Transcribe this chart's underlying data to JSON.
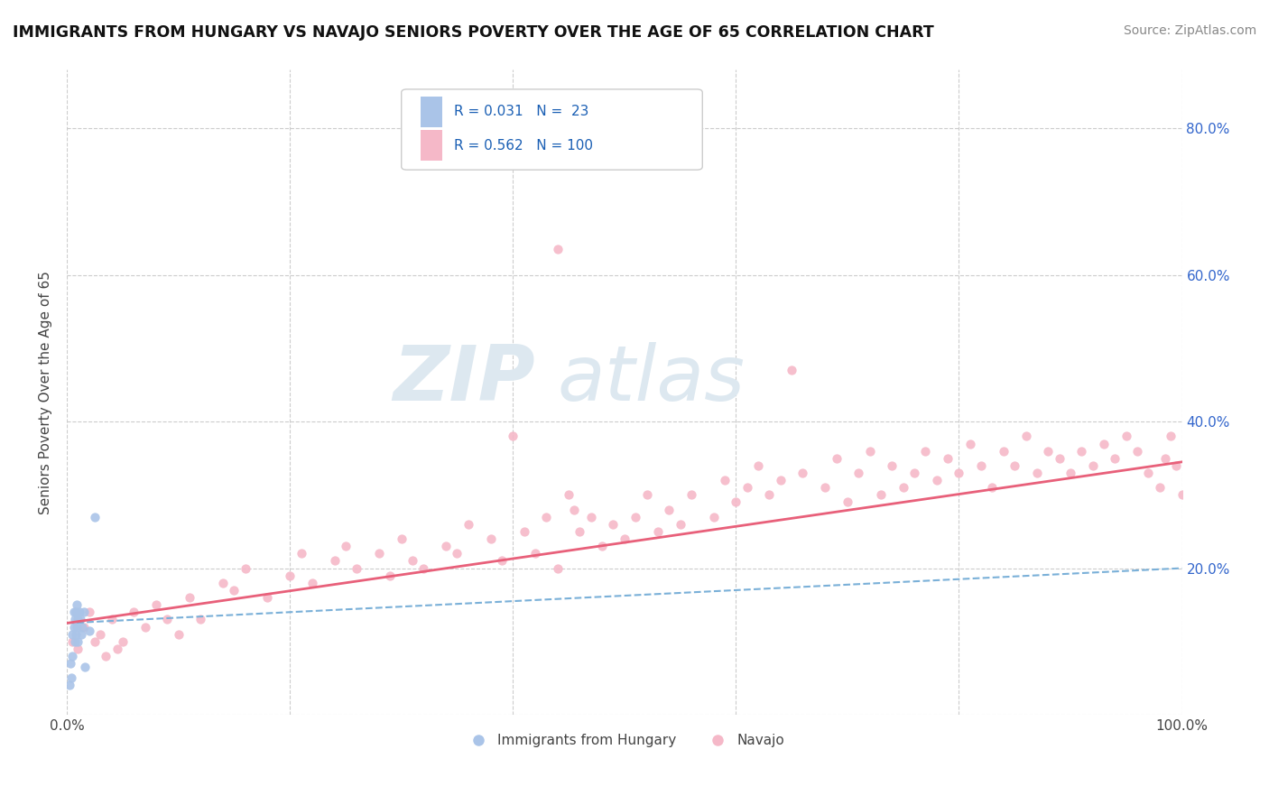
{
  "title": "IMMIGRANTS FROM HUNGARY VS NAVAJO SENIORS POVERTY OVER THE AGE OF 65 CORRELATION CHART",
  "source": "Source: ZipAtlas.com",
  "ylabel": "Seniors Poverty Over the Age of 65",
  "xlim": [
    0.0,
    1.0
  ],
  "ylim": [
    0.0,
    0.88
  ],
  "xticks": [
    0.0,
    0.2,
    0.4,
    0.6,
    0.8,
    1.0
  ],
  "xtick_labels": [
    "0.0%",
    "",
    "",
    "",
    "",
    "100.0%"
  ],
  "yticks": [
    0.0,
    0.2,
    0.4,
    0.6,
    0.8
  ],
  "ytick_labels_left": [
    "",
    "",
    "40.0%",
    "60.0%",
    "80.0%"
  ],
  "ytick_labels_right": [
    "",
    "20.0%",
    "40.0%",
    "60.0%",
    "80.0%"
  ],
  "background_color": "#ffffff",
  "grid_color": "#cccccc",
  "series1_color": "#aac4e8",
  "series2_color": "#f5b8c8",
  "trendline1_color": "#7ab0d8",
  "trendline2_color": "#e8607a",
  "watermark_color": "#dde8f0",
  "text_color": "#444444",
  "blue_text_color": "#3366cc",
  "legend_color": "#1a5fb4",
  "series1_x": [
    0.002,
    0.003,
    0.004,
    0.005,
    0.005,
    0.006,
    0.006,
    0.007,
    0.007,
    0.008,
    0.008,
    0.009,
    0.009,
    0.01,
    0.01,
    0.011,
    0.012,
    0.013,
    0.014,
    0.015,
    0.016,
    0.02,
    0.025
  ],
  "series1_y": [
    0.04,
    0.07,
    0.05,
    0.08,
    0.11,
    0.12,
    0.14,
    0.1,
    0.13,
    0.11,
    0.14,
    0.12,
    0.15,
    0.1,
    0.13,
    0.14,
    0.13,
    0.11,
    0.12,
    0.14,
    0.065,
    0.115,
    0.27
  ],
  "series2_x": [
    0.005,
    0.01,
    0.015,
    0.02,
    0.025,
    0.03,
    0.035,
    0.04,
    0.045,
    0.05,
    0.06,
    0.07,
    0.08,
    0.09,
    0.1,
    0.11,
    0.12,
    0.14,
    0.15,
    0.16,
    0.18,
    0.2,
    0.21,
    0.22,
    0.24,
    0.25,
    0.26,
    0.28,
    0.29,
    0.3,
    0.31,
    0.32,
    0.34,
    0.35,
    0.36,
    0.38,
    0.39,
    0.4,
    0.41,
    0.42,
    0.43,
    0.44,
    0.45,
    0.455,
    0.46,
    0.47,
    0.48,
    0.49,
    0.5,
    0.51,
    0.52,
    0.53,
    0.54,
    0.55,
    0.56,
    0.58,
    0.59,
    0.6,
    0.61,
    0.62,
    0.63,
    0.64,
    0.65,
    0.66,
    0.68,
    0.69,
    0.7,
    0.71,
    0.72,
    0.73,
    0.74,
    0.75,
    0.76,
    0.77,
    0.78,
    0.79,
    0.8,
    0.81,
    0.82,
    0.83,
    0.84,
    0.85,
    0.86,
    0.87,
    0.88,
    0.89,
    0.9,
    0.91,
    0.92,
    0.93,
    0.94,
    0.95,
    0.96,
    0.97,
    0.98,
    0.985,
    0.99,
    0.995,
    1.0,
    0.44
  ],
  "series2_y": [
    0.1,
    0.09,
    0.12,
    0.14,
    0.1,
    0.11,
    0.08,
    0.13,
    0.09,
    0.1,
    0.14,
    0.12,
    0.15,
    0.13,
    0.11,
    0.16,
    0.13,
    0.18,
    0.17,
    0.2,
    0.16,
    0.19,
    0.22,
    0.18,
    0.21,
    0.23,
    0.2,
    0.22,
    0.19,
    0.24,
    0.21,
    0.2,
    0.23,
    0.22,
    0.26,
    0.24,
    0.21,
    0.38,
    0.25,
    0.22,
    0.27,
    0.2,
    0.3,
    0.28,
    0.25,
    0.27,
    0.23,
    0.26,
    0.24,
    0.27,
    0.3,
    0.25,
    0.28,
    0.26,
    0.3,
    0.27,
    0.32,
    0.29,
    0.31,
    0.34,
    0.3,
    0.32,
    0.47,
    0.33,
    0.31,
    0.35,
    0.29,
    0.33,
    0.36,
    0.3,
    0.34,
    0.31,
    0.33,
    0.36,
    0.32,
    0.35,
    0.33,
    0.37,
    0.34,
    0.31,
    0.36,
    0.34,
    0.38,
    0.33,
    0.36,
    0.35,
    0.33,
    0.36,
    0.34,
    0.37,
    0.35,
    0.38,
    0.36,
    0.33,
    0.31,
    0.35,
    0.38,
    0.34,
    0.3,
    0.635
  ]
}
